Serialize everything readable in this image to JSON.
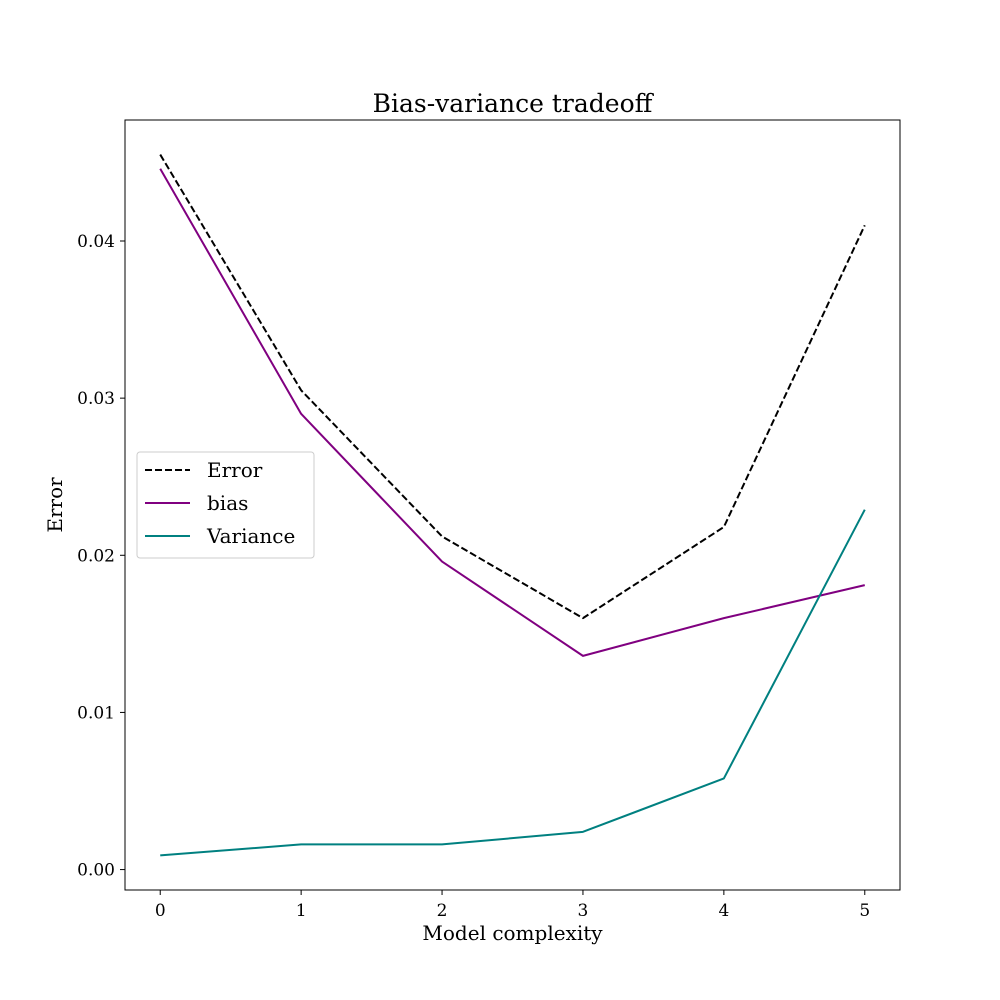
{
  "chart_data": {
    "type": "line",
    "title": "Bias-variance tradeoff",
    "xlabel": "Model complexity",
    "ylabel": "Error",
    "x": [
      0,
      1,
      2,
      3,
      4,
      5
    ],
    "xlim": [
      -0.25,
      5.25
    ],
    "ylim": [
      -0.0013,
      0.0477
    ],
    "xticks": [
      0,
      1,
      2,
      3,
      4,
      5
    ],
    "xtick_labels": [
      "0",
      "1",
      "2",
      "3",
      "4",
      "5"
    ],
    "yticks": [
      0.0,
      0.01,
      0.02,
      0.03,
      0.04
    ],
    "ytick_labels": [
      "0.00",
      "0.01",
      "0.02",
      "0.03",
      "0.04"
    ],
    "grid": false,
    "legend_position": "center-left",
    "series": [
      {
        "name": "Error",
        "values": [
          0.0455,
          0.0305,
          0.0212,
          0.016,
          0.0218,
          0.041
        ],
        "color": "#000000",
        "dash": "dashed"
      },
      {
        "name": "bias",
        "values": [
          0.0446,
          0.029,
          0.0196,
          0.0136,
          0.016,
          0.0181
        ],
        "color": "#800080",
        "dash": "solid"
      },
      {
        "name": "Variance",
        "values": [
          0.0009,
          0.0016,
          0.0016,
          0.0024,
          0.0058,
          0.0229
        ],
        "color": "#008080",
        "dash": "solid"
      }
    ]
  }
}
